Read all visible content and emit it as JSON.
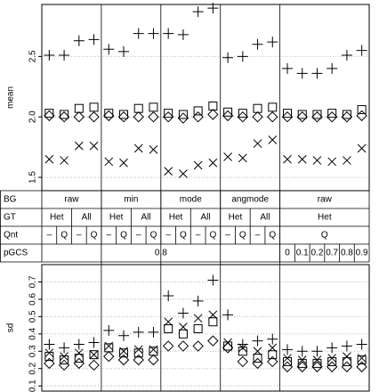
{
  "chart_data": [
    {
      "type": "scatter",
      "ylabel": "mean",
      "ylim": [
        1.39,
        2.93
      ],
      "yticks": [
        1.5,
        {
          "value": 2,
          "label": "2.0"
        },
        2.5
      ],
      "grid": true,
      "series": [
        {
          "marker": "plus",
          "color": "#000000",
          "values": [
            2.51,
            2.51,
            2.63,
            2.64,
            2.56,
            2.54,
            2.69,
            2.69,
            2.69,
            2.68,
            2.87,
            2.9,
            2.49,
            2.5,
            2.6,
            2.62,
            2.4,
            2.36,
            2.36,
            2.4,
            2.51,
            2.55
          ]
        },
        {
          "marker": "square",
          "color": "#000000",
          "values": [
            2.03,
            2.02,
            2.07,
            2.08,
            2.03,
            2.02,
            2.07,
            2.08,
            2.03,
            2.02,
            2.05,
            2.09,
            2.04,
            2.03,
            2.07,
            2.08,
            2.03,
            2.02,
            2.02,
            2.03,
            2.02,
            2.06
          ]
        },
        {
          "marker": "diamond",
          "color": "#000000",
          "values": [
            2.01,
            2.0,
            2.0,
            2.0,
            2.01,
            2.0,
            2.0,
            2.0,
            2.0,
            1.99,
            2.0,
            2.02,
            2.01,
            2.0,
            2.0,
            2.0,
            2.0,
            2.0,
            2.0,
            2.0,
            2.0,
            2.01
          ]
        },
        {
          "marker": "x",
          "color": "#000000",
          "values": [
            1.65,
            1.64,
            1.76,
            1.76,
            1.63,
            1.62,
            1.74,
            1.73,
            1.55,
            1.53,
            1.6,
            1.62,
            1.67,
            1.66,
            1.78,
            1.81,
            1.65,
            1.65,
            1.64,
            1.63,
            1.64,
            1.74
          ]
        }
      ]
    },
    {
      "type": "scatter",
      "ylabel": "sd",
      "ylim": [
        0.07,
        0.8
      ],
      "yticks": [
        0.1,
        0.2,
        0.3,
        0.4,
        0.5,
        0.6,
        0.7
      ],
      "grid": true,
      "series": [
        {
          "marker": "plus",
          "color": "#000000",
          "values": [
            0.34,
            0.32,
            0.34,
            0.35,
            0.42,
            0.39,
            0.41,
            0.41,
            0.62,
            0.52,
            0.59,
            0.71,
            0.51,
            0.34,
            0.36,
            0.37,
            0.31,
            0.3,
            0.3,
            0.32,
            0.33,
            0.34
          ]
        },
        {
          "marker": "x",
          "color": "#000000",
          "values": [
            0.29,
            0.27,
            0.29,
            0.28,
            0.33,
            0.3,
            0.31,
            0.31,
            0.47,
            0.44,
            0.49,
            0.51,
            0.35,
            0.32,
            0.3,
            0.32,
            0.26,
            0.25,
            0.25,
            0.26,
            0.27,
            0.26
          ]
        },
        {
          "marker": "square",
          "color": "#000000",
          "values": [
            0.27,
            0.25,
            0.26,
            0.28,
            0.32,
            0.29,
            0.29,
            0.3,
            0.43,
            0.4,
            0.43,
            0.47,
            0.33,
            0.3,
            0.26,
            0.28,
            0.24,
            0.23,
            0.23,
            0.24,
            0.24,
            0.25
          ]
        },
        {
          "marker": "diamond",
          "color": "#000000",
          "values": [
            0.23,
            0.22,
            0.23,
            0.22,
            0.27,
            0.25,
            0.25,
            0.25,
            0.33,
            0.33,
            0.33,
            0.36,
            0.32,
            0.24,
            0.23,
            0.24,
            0.21,
            0.21,
            0.21,
            0.21,
            0.21,
            0.21
          ]
        }
      ]
    }
  ],
  "table": {
    "rows": [
      {
        "label": "BG",
        "cells": [
          "raw",
          null,
          null,
          null,
          "min",
          null,
          null,
          null,
          "mode",
          null,
          null,
          null,
          "angmode",
          null,
          null,
          null,
          "raw",
          null,
          null,
          null,
          null,
          null
        ]
      },
      {
        "label": "GT",
        "cells": [
          "Het",
          null,
          "All",
          null,
          "Het",
          null,
          "All",
          null,
          "Het",
          null,
          "All",
          null,
          "Het",
          null,
          "All",
          null,
          "Het",
          null,
          null,
          null,
          null,
          null
        ]
      },
      {
        "label": "Qnt",
        "cells": [
          "–",
          "Q",
          "–",
          "Q",
          "–",
          "Q",
          "–",
          "Q",
          "–",
          "Q",
          "–",
          "Q",
          "–",
          "Q",
          "–",
          "Q",
          "Q",
          null,
          null,
          null,
          null,
          null
        ]
      },
      {
        "label": "pGCS",
        "cells": [
          "0.8",
          null,
          null,
          null,
          null,
          null,
          null,
          null,
          null,
          null,
          null,
          null,
          null,
          null,
          null,
          null,
          "0",
          "0.1",
          "0.2",
          "0.7",
          "0.8",
          "0.9"
        ]
      }
    ]
  }
}
